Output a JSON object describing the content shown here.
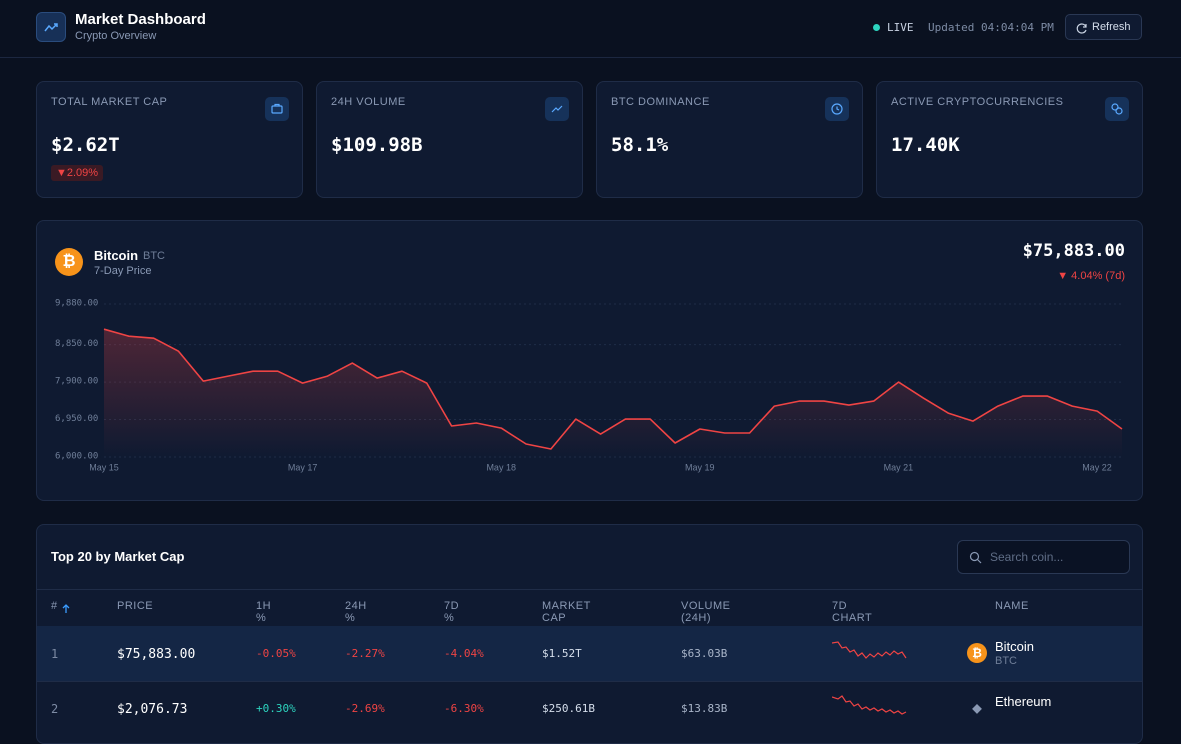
{
  "header": {
    "title": "Market Dashboard",
    "subtitle": "Crypto Overview",
    "status": "LIVE",
    "updated": "Updated 04:04:04 PM",
    "refresh": "Refresh"
  },
  "stats": [
    {
      "label": "TOTAL MARKET CAP",
      "value": "$2.62T",
      "change": "▼2.09%"
    },
    {
      "label": "24H VOLUME",
      "value": "$109.98B"
    },
    {
      "label": "BTC DOMINANCE",
      "value": "58.1%"
    },
    {
      "label": "ACTIVE CRYPTOCURRENCIES",
      "value": "17.40K"
    }
  ],
  "coin": {
    "name": "Bitcoin",
    "symbol": "BTC",
    "caption": "7-Day Price",
    "price": "$75,883.00",
    "change": "▼ 4.04% (7d)"
  },
  "chart_data": {
    "type": "line",
    "x_labels": [
      "May 15",
      "May 17",
      "May 18",
      "May 19",
      "May 21",
      "May 22"
    ],
    "values": [
      9240,
      9063,
      9013,
      8684,
      7924,
      8051,
      8177,
      8177,
      7873,
      8051,
      8380,
      8000,
      8177,
      7873,
      6785,
      6861,
      6734,
      6329,
      6203,
      6962,
      6582,
      6962,
      6962,
      6354,
      6709,
      6608,
      6608,
      7291,
      7418,
      7418,
      7316,
      7418,
      7899,
      7494,
      7114,
      6911,
      7291,
      7544,
      7544,
      7291,
      7165,
      6709
    ],
    "color": "#ef4444",
    "ylim": [
      6000,
      9880
    ],
    "yticks": [
      {
        "value": 6000,
        "label": "6,000.00"
      },
      {
        "value": 6950,
        "label": "6,950.00"
      },
      {
        "value": 7900,
        "label": "7,900.00"
      },
      {
        "value": 8850,
        "label": "8,850.00"
      },
      {
        "value": 9880,
        "label": "9,880.00"
      }
    ],
    "grid": true
  },
  "table": {
    "title": "Top 20 by Market Cap",
    "search_placeholder": "Search coin...",
    "columns": [
      "#",
      "PRICE",
      "1H %",
      "24H %",
      "7D %",
      "MARKET CAP",
      "VOLUME (24H)",
      "7D CHART",
      "NAME"
    ],
    "rows": [
      {
        "rank": "1",
        "price": "$75,883.00",
        "h1": "-0.05%",
        "h24": "-2.27%",
        "d7": "-4.04%",
        "market_cap": "$1.52T",
        "volume": "$63.03B",
        "name": "Bitcoin",
        "symbol": "BTC"
      },
      {
        "rank": "2",
        "price": "$2,076.73",
        "h1": "+0.30%",
        "h24": "-2.69%",
        "d7": "-6.30%",
        "market_cap": "$250.61B",
        "volume": "$13.83B",
        "name": "Ethereum"
      }
    ]
  }
}
